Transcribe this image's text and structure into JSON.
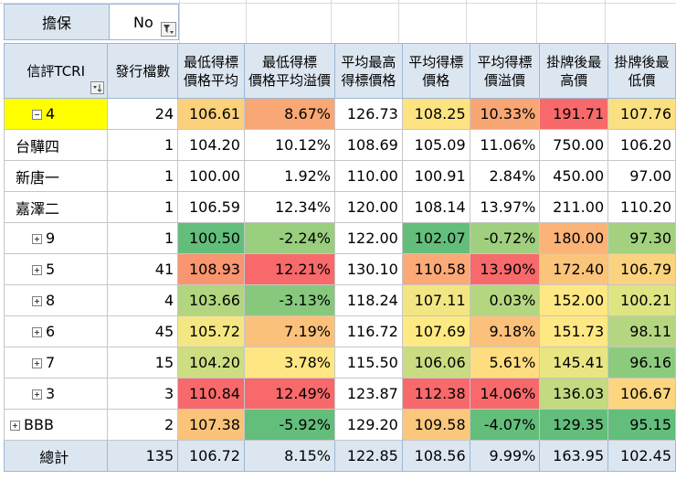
{
  "filter": {
    "label": "擔保",
    "value": "No"
  },
  "headers": {
    "row_label": "信評TCRI",
    "cols": [
      "發行檔數",
      "最低得標價格平均",
      "最低得標價格平均溢價",
      "平均最高得標價格",
      "平均得標價格",
      "平均得標價溢價",
      "掛牌後最高價",
      "掛牌後最低價"
    ]
  },
  "rows": [
    {
      "label": "4",
      "kind": "group-expanded",
      "selected": true,
      "cells": [
        "24",
        "106.61",
        "8.67%",
        "126.73",
        "108.25",
        "10.33%",
        "191.71",
        "107.76"
      ],
      "colors": [
        null,
        "#fbd17c",
        "#f9a875",
        null,
        "#fde381",
        "#f8a774",
        "#f8696b",
        "#fbe082"
      ]
    },
    {
      "label": "台驊四",
      "kind": "child",
      "cells": [
        "1",
        "104.20",
        "10.12%",
        "108.69",
        "105.09",
        "11.06%",
        "750.00",
        "106.20"
      ],
      "colors": [
        null,
        null,
        null,
        null,
        null,
        null,
        null,
        null
      ]
    },
    {
      "label": "新唐一",
      "kind": "child",
      "cells": [
        "1",
        "100.00",
        "1.92%",
        "110.00",
        "100.91",
        "2.84%",
        "450.00",
        "97.00"
      ],
      "colors": [
        null,
        null,
        null,
        null,
        null,
        null,
        null,
        null
      ]
    },
    {
      "label": "嘉澤二",
      "kind": "child",
      "cells": [
        "1",
        "106.59",
        "12.34%",
        "120.00",
        "108.14",
        "13.97%",
        "211.00",
        "110.20"
      ],
      "colors": [
        null,
        null,
        null,
        null,
        null,
        null,
        null,
        null
      ]
    },
    {
      "label": "9",
      "kind": "group",
      "cells": [
        "1",
        "100.50",
        "-2.24%",
        "122.00",
        "102.07",
        "-0.72%",
        "180.00",
        "97.30"
      ],
      "colors": [
        null,
        "#63be7b",
        "#99ce7e",
        null,
        "#63be7b",
        "#a0d07f",
        "#fbb378",
        "#a3d17f"
      ]
    },
    {
      "label": "5",
      "kind": "group",
      "cells": [
        "41",
        "108.93",
        "12.21%",
        "130.10",
        "110.58",
        "13.90%",
        "172.40",
        "106.79"
      ],
      "colors": [
        null,
        "#f9956f",
        "#f8696b",
        null,
        "#fba976",
        "#f8696b",
        "#fbc47b",
        "#fbd27e"
      ]
    },
    {
      "label": "8",
      "kind": "group",
      "cells": [
        "4",
        "103.66",
        "-3.13%",
        "118.24",
        "107.11",
        "0.03%",
        "152.00",
        "100.21"
      ],
      "colors": [
        null,
        "#b2d580",
        "#87c87d",
        null,
        "#f1e683",
        "#b5d680",
        "#fee884",
        "#dde482"
      ]
    },
    {
      "label": "6",
      "kind": "group",
      "cells": [
        "45",
        "105.72",
        "7.19%",
        "116.72",
        "107.69",
        "9.18%",
        "151.73",
        "98.11"
      ],
      "colors": [
        null,
        "#f4e783",
        "#fbc17a",
        null,
        "#feea83",
        "#fbc07a",
        "#fee883",
        "#b5d680"
      ]
    },
    {
      "label": "7",
      "kind": "group",
      "cells": [
        "15",
        "104.20",
        "3.78%",
        "115.50",
        "106.06",
        "5.61%",
        "145.41",
        "96.16"
      ],
      "colors": [
        null,
        "#cddd82",
        "#fde683",
        null,
        "#c9dc81",
        "#fedd80",
        "#e9e583",
        "#8ccb7e"
      ]
    },
    {
      "label": "3",
      "kind": "group",
      "cells": [
        "3",
        "110.84",
        "12.49%",
        "123.87",
        "112.38",
        "14.06%",
        "136.03",
        "106.67"
      ],
      "colors": [
        null,
        "#f8696b",
        "#f8696b",
        null,
        "#f8696b",
        "#f8696b",
        "#c3da81",
        "#fbd67f"
      ]
    },
    {
      "label": "BBB",
      "kind": "group",
      "cells": [
        "2",
        "107.38",
        "-5.92%",
        "129.20",
        "109.58",
        "-4.07%",
        "129.35",
        "95.15"
      ],
      "colors": [
        null,
        "#fbc37a",
        "#63be7b",
        null,
        "#fbc77c",
        "#63be7b",
        "#63be7b",
        "#63be7b"
      ]
    }
  ],
  "total": {
    "label": "總計",
    "cells": [
      "135",
      "106.72",
      "8.15%",
      "122.85",
      "108.56",
      "9.99%",
      "163.95",
      "102.45"
    ]
  }
}
